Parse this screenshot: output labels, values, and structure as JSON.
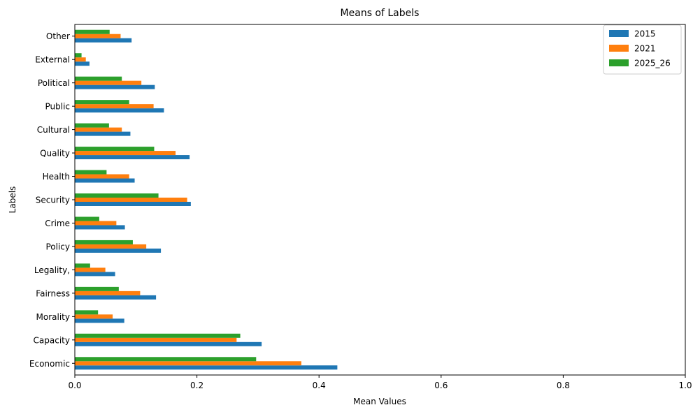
{
  "chart_data": {
    "type": "bar",
    "orientation": "horizontal",
    "title": "Means of Labels",
    "xlabel": "Mean Values",
    "ylabel": "Labels",
    "xlim": [
      0,
      1.0
    ],
    "xticks": [
      "0.0",
      "0.2",
      "0.4",
      "0.6",
      "0.8",
      "1.0"
    ],
    "grid": false,
    "legend_position": "top-right",
    "categories": [
      "Economic",
      "Capacity",
      "Morality",
      "Fairness",
      "Legality,",
      "Policy",
      "Crime",
      "Security",
      "Health",
      "Quality",
      "Cultural",
      "Public",
      "Political",
      "External",
      "Other"
    ],
    "series": [
      {
        "name": "2015",
        "color": "#1f77b4",
        "values": [
          0.43,
          0.306,
          0.081,
          0.133,
          0.066,
          0.141,
          0.082,
          0.19,
          0.098,
          0.188,
          0.091,
          0.146,
          0.131,
          0.024,
          0.093
        ]
      },
      {
        "name": "2021",
        "color": "#ff7f0e",
        "values": [
          0.371,
          0.265,
          0.062,
          0.107,
          0.05,
          0.117,
          0.068,
          0.184,
          0.089,
          0.165,
          0.077,
          0.129,
          0.109,
          0.018,
          0.075
        ]
      },
      {
        "name": "2025_26",
        "color": "#2ca02c",
        "values": [
          0.297,
          0.271,
          0.038,
          0.072,
          0.025,
          0.095,
          0.04,
          0.137,
          0.052,
          0.13,
          0.056,
          0.089,
          0.077,
          0.011,
          0.057
        ]
      }
    ]
  }
}
